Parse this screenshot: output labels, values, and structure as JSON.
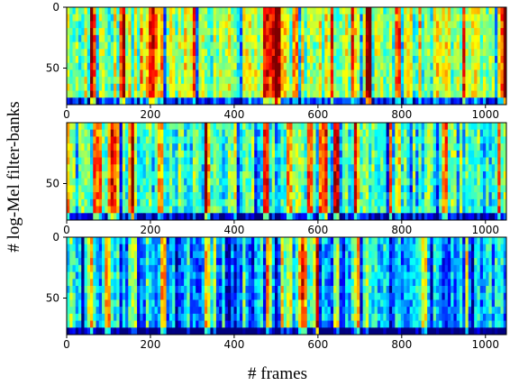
{
  "chart_data": {
    "type": "heatmap",
    "xlabel": "# frames",
    "ylabel": "# log-Mel filter-banks",
    "colormap": "jet",
    "colormap_stops": [
      "#00007f",
      "#0000ff",
      "#007fff",
      "#00ffff",
      "#7fff7f",
      "#ffff00",
      "#ff7f00",
      "#ff0000",
      "#7f0000"
    ],
    "xlim": [
      0,
      1050
    ],
    "ylim": [
      0,
      80
    ],
    "y_inverted": true,
    "panels": [
      {
        "xticks": [
          0,
          200,
          400,
          600,
          800,
          1000
        ],
        "yticks": [
          0,
          50
        ],
        "base_level": 0.52,
        "note": "mostly green-yellow, sparse red vertical streaks"
      },
      {
        "xticks": [
          0,
          200,
          400,
          600,
          800,
          1000
        ],
        "yticks": [
          50
        ],
        "base_level": 0.42,
        "note": "cyan-yellow mix, red blobs at low bins"
      },
      {
        "xticks": [
          0,
          200,
          400,
          600,
          800,
          1000
        ],
        "yticks": [
          0,
          50
        ],
        "base_level": 0.3,
        "note": "blue-cyan background, yellow/red vertical streaks"
      }
    ]
  }
}
